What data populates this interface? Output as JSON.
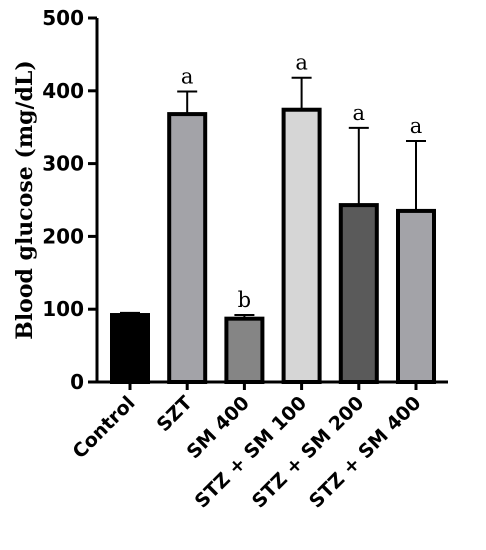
{
  "chart_data": {
    "type": "bar",
    "title": "",
    "xlabel": "",
    "ylabel": "Blood glucose (mg/dL)",
    "ylim": [
      0,
      500
    ],
    "yticks": [
      0,
      100,
      200,
      300,
      400,
      500
    ],
    "grid": false,
    "categories": [
      "Control",
      "SZT",
      "SM 400",
      "STZ + SM 100",
      "STZ + SM 200",
      "STZ + SM 400"
    ],
    "values": [
      92,
      368,
      87,
      374,
      243,
      235
    ],
    "errors": [
      3,
      31,
      5,
      44,
      106,
      96
    ],
    "significance": [
      "",
      "a",
      "b",
      "a",
      "a",
      "a"
    ],
    "colors": [
      "#000000",
      "#a3a3a8",
      "#858585",
      "#d6d6d6",
      "#5a5a5a",
      "#a3a3a8"
    ]
  }
}
